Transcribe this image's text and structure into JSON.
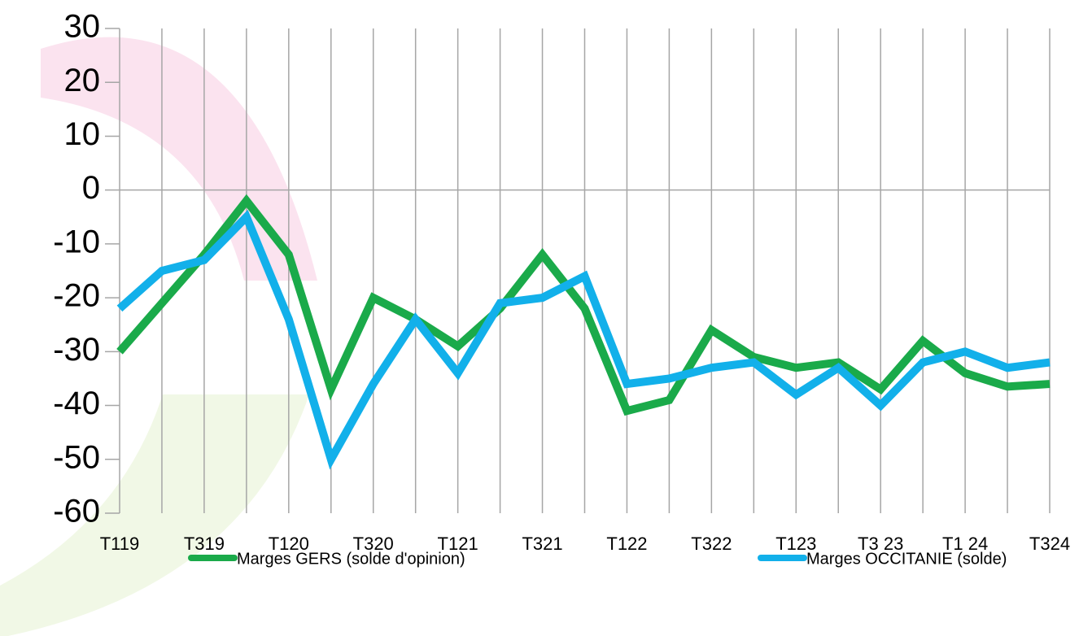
{
  "chart_data": {
    "type": "line",
    "categories": [
      "T119",
      null,
      "T319",
      null,
      "T120",
      null,
      "T320",
      null,
      "T121",
      null,
      "T321",
      null,
      "T122",
      null,
      "T322",
      null,
      "T123",
      null,
      "T3 23",
      null,
      "T1 24",
      null,
      "T324"
    ],
    "series": [
      {
        "name": "Marges GERS (solde d'opinion)",
        "color": "#1aaa4a",
        "values": [
          -30,
          -21,
          -12,
          -2,
          -12,
          -37,
          -20,
          -24,
          -29,
          -22,
          -12,
          -22,
          -41,
          -39,
          -26,
          -31,
          -33,
          -32,
          -37,
          -28,
          -34,
          -36.5,
          -36
        ]
      },
      {
        "name": "Marges OCCITANIE (solde)",
        "color": "#12b0ea",
        "values": [
          -22,
          -15,
          -13,
          -5,
          -24,
          -50,
          -36,
          -24,
          -34,
          -21,
          -20,
          -16,
          -36,
          -35,
          -33,
          -32,
          -38,
          -33,
          -40,
          -32,
          -30,
          -33,
          -32
        ]
      }
    ],
    "ylim": [
      -60,
      30
    ],
    "yticks": [
      -60,
      -50,
      -40,
      -30,
      -20,
      -10,
      0,
      10,
      20,
      30
    ],
    "grid": true
  }
}
